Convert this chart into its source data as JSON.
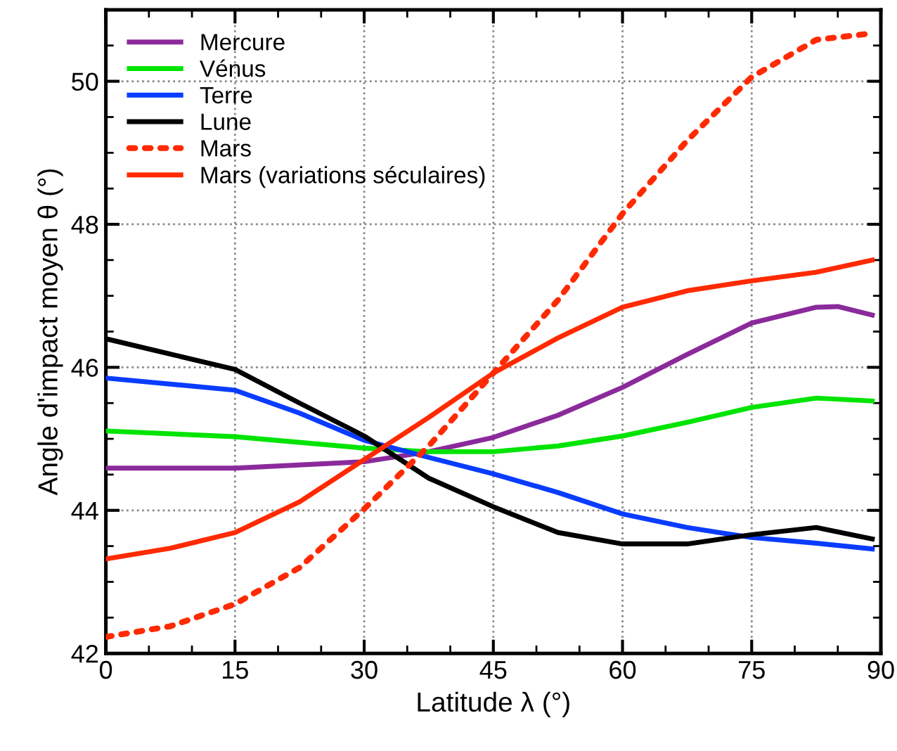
{
  "chart_data": {
    "type": "line",
    "xlabel": "Latitude λ (°)",
    "ylabel": "Angle d'impact moyen θ (°)",
    "xlim": [
      0,
      90
    ],
    "ylim": [
      42,
      51
    ],
    "xticks": [
      0,
      15,
      30,
      45,
      60,
      75,
      90
    ],
    "yticks": [
      42,
      44,
      46,
      48,
      50
    ],
    "grid": true,
    "legend": "top left",
    "marker": "none",
    "series": [
      {
        "name": "Mercure",
        "color": "#8b2a9b",
        "line_style": "solid",
        "x": [
          0,
          15,
          30,
          37.5,
          45,
          52.5,
          60,
          67.5,
          75,
          82.5,
          85,
          89
        ],
        "values": [
          44.59,
          44.59,
          44.68,
          44.82,
          45.02,
          45.33,
          45.72,
          46.18,
          46.62,
          46.84,
          46.85,
          46.73
        ]
      },
      {
        "name": "Vénus",
        "color": "#00e400",
        "line_style": "solid",
        "x": [
          0,
          15,
          30,
          37.5,
          45,
          52.5,
          60,
          67.5,
          75,
          82.5,
          89
        ],
        "values": [
          45.11,
          45.03,
          44.87,
          44.82,
          44.82,
          44.9,
          45.04,
          45.23,
          45.44,
          45.57,
          45.53
        ]
      },
      {
        "name": "Terre",
        "color": "#0a3cff",
        "line_style": "solid",
        "x": [
          0,
          15,
          22.5,
          30,
          37.5,
          45,
          52.5,
          60,
          67.5,
          75,
          82.5,
          89
        ],
        "values": [
          45.85,
          45.68,
          45.36,
          44.98,
          44.74,
          44.51,
          44.25,
          43.95,
          43.76,
          43.62,
          43.54,
          43.46
        ]
      },
      {
        "name": "Lune",
        "color": "#000000",
        "line_style": "solid",
        "x": [
          0,
          15,
          22.5,
          30,
          37.5,
          45,
          52.5,
          60,
          67.5,
          75,
          82.5,
          89
        ],
        "values": [
          46.4,
          45.97,
          45.5,
          45.04,
          44.45,
          44.05,
          43.69,
          43.53,
          43.53,
          43.66,
          43.76,
          43.6
        ]
      },
      {
        "name": "Mars",
        "color": "#ff2a00",
        "line_style": "dotted",
        "x": [
          0,
          7.5,
          15,
          22.5,
          30,
          37.5,
          45,
          52.5,
          60,
          67.5,
          75,
          82.5,
          89
        ],
        "values": [
          42.23,
          42.38,
          42.69,
          43.2,
          44.02,
          44.9,
          45.92,
          46.94,
          48.15,
          49.17,
          50.06,
          50.58,
          50.67
        ]
      },
      {
        "name": "Mars (variations séculaires)",
        "color": "#ff2a00",
        "line_style": "solid",
        "x": [
          0,
          7.5,
          15,
          22.5,
          30,
          37.5,
          45,
          52.5,
          60,
          67.5,
          75,
          82.5,
          89
        ],
        "values": [
          43.32,
          43.47,
          43.69,
          44.12,
          44.71,
          45.3,
          45.92,
          46.41,
          46.84,
          47.07,
          47.21,
          47.33,
          47.5
        ]
      }
    ]
  }
}
